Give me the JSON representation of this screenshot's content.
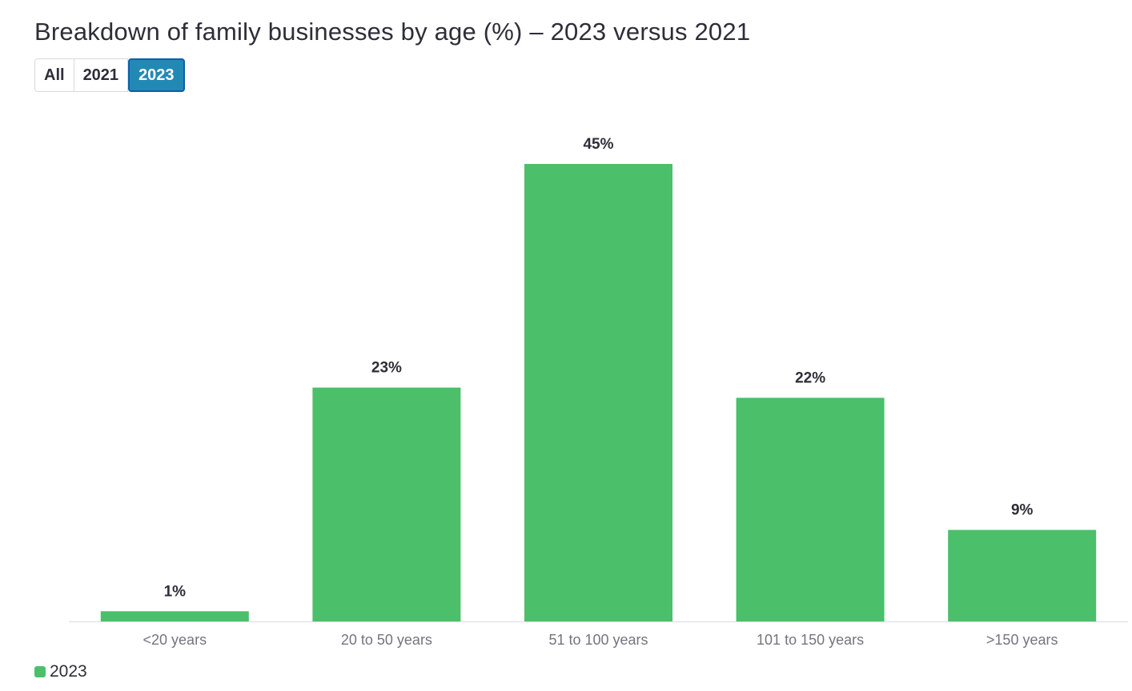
{
  "title": "Breakdown of family businesses by age (%) – 2023 versus 2021",
  "filters": {
    "options": [
      "All",
      "2021",
      "2023"
    ],
    "selected": "2023"
  },
  "chart_data": {
    "type": "bar",
    "categories": [
      "<20 years",
      "20 to 50 years",
      "51 to 100 years",
      "101 to 150 years",
      ">150 years"
    ],
    "series": [
      {
        "name": "2023",
        "color": "#4bbf6a",
        "values": [
          1,
          23,
          45,
          22,
          9
        ],
        "labels": [
          "1%",
          "23%",
          "45%",
          "22%",
          "9%"
        ]
      }
    ],
    "ylim": [
      0,
      45
    ],
    "grid": false,
    "legend_position": "bottom-left"
  },
  "legend": {
    "items": [
      {
        "label": "2023",
        "color": "#4bbf6a"
      }
    ]
  }
}
